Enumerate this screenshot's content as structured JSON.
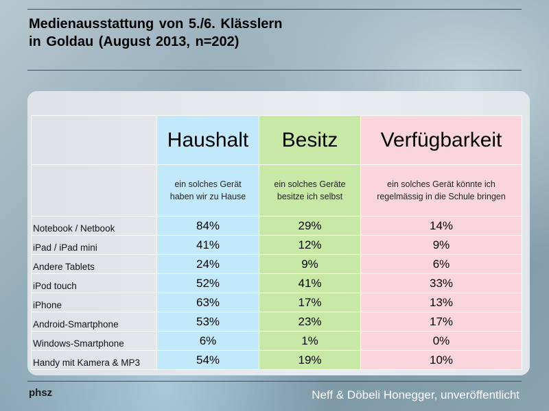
{
  "title_line1": "Medienausstattung von 5./6. Klässlern",
  "title_line2": "in Goldau (August 2013, n=202)",
  "columns": [
    {
      "header": "Haushalt",
      "sub_line1": "ein solches Gerät",
      "sub_line2": "haben wir zu Hause",
      "color": "#c2e8fb"
    },
    {
      "header": "Besitz",
      "sub_line1": "ein solches Geräte",
      "sub_line2": "besitze ich selbst",
      "color": "#c8e8a6"
    },
    {
      "header": "Verfügbarkeit",
      "sub_line1": "ein solches Gerät könnte ich",
      "sub_line2": "regelmässig in die Schule bringen",
      "color": "#fad6dc"
    }
  ],
  "rows": [
    {
      "label": "Notebook / Netbook",
      "values": [
        "84%",
        "29%",
        "14%"
      ]
    },
    {
      "label": "iPad / iPad mini",
      "values": [
        "41%",
        "12%",
        "9%"
      ]
    },
    {
      "label": "Andere Tablets",
      "values": [
        "24%",
        "9%",
        "6%"
      ]
    },
    {
      "label": "iPod touch",
      "values": [
        "52%",
        "41%",
        "33%"
      ]
    },
    {
      "label": "iPhone",
      "values": [
        "63%",
        "17%",
        "13%"
      ]
    },
    {
      "label": "Android-Smartphone",
      "values": [
        "53%",
        "23%",
        "17%"
      ]
    },
    {
      "label": "Windows-Smartphone",
      "values": [
        "6%",
        "1%",
        "0%"
      ]
    },
    {
      "label": "Handy mit Kamera & MP3",
      "values": [
        "54%",
        "19%",
        "10%"
      ]
    }
  ],
  "footer": {
    "logo": "phsz",
    "credit": "Neff & Döbeli Honegger, unveröffentlicht"
  }
}
